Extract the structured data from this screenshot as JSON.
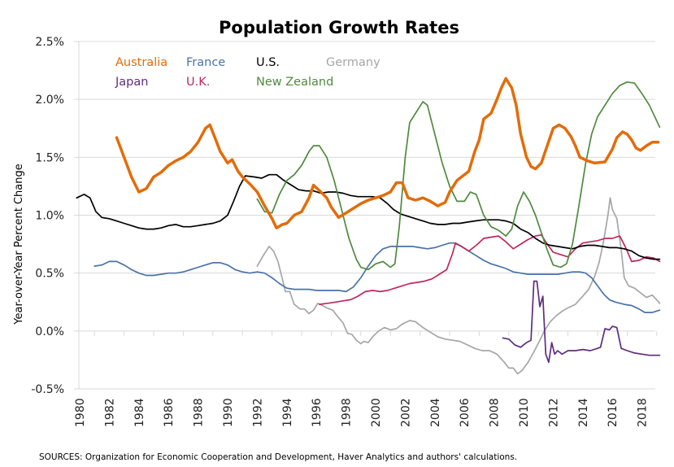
{
  "chart_data": {
    "type": "line",
    "title": "Population Growth Rates",
    "xlabel": "",
    "ylabel": "Year-over-Year  Percent Change",
    "source": "SOURCES: Organization for Economic Cooperation and Development,  Haver Analytics and authors' calculations.",
    "xlim": [
      1980,
      2019.2
    ],
    "ylim": [
      -0.5,
      2.5
    ],
    "yticks": [
      -0.5,
      0.0,
      0.5,
      1.0,
      1.5,
      2.0,
      2.5
    ],
    "ytick_labels": [
      "-0.5%",
      "0.0%",
      "0.5%",
      "1.0%",
      "1.5%",
      "2.0%",
      "2.5%"
    ],
    "xticks": [
      1980,
      1982,
      1984,
      1986,
      1988,
      1990,
      1992,
      1994,
      1996,
      1998,
      2000,
      2002,
      2004,
      2006,
      2008,
      2010,
      2012,
      2014,
      2016,
      2018
    ],
    "xtick_labels": [
      "1980",
      "1982",
      "1984",
      "1986",
      "1988",
      "1990",
      "1992",
      "1994",
      "1996",
      "1998",
      "2000",
      "2002",
      "2004",
      "2006",
      "2008",
      "2010",
      "2012",
      "2014",
      "2016",
      "2018"
    ],
    "grid": "horizontal",
    "legend_position": "top-left",
    "legend": [
      {
        "name": "Australia",
        "color": "#E36C09"
      },
      {
        "name": "France",
        "color": "#4A72A8"
      },
      {
        "name": "U.S.",
        "color": "#000000"
      },
      {
        "name": "Germany",
        "color": "#A6A6A6"
      },
      {
        "name": "Japan",
        "color": "#5F2C7E"
      },
      {
        "name": "U.K.",
        "color": "#C0275B"
      },
      {
        "name": "New Zealand",
        "color": "#4E8A3E"
      }
    ],
    "series": [
      {
        "name": "Germany",
        "color": "#A6A6A6",
        "bold": false,
        "x": [
          1992,
          1992.4,
          1992.8,
          1993.1,
          1993.4,
          1993.7,
          1993.9,
          1994.2,
          1994.5,
          1994.9,
          1995.2,
          1995.5,
          1995.8,
          1996.1,
          1996.4,
          1996.7,
          1997.1,
          1997.4,
          1997.8,
          1998.1,
          1998.4,
          1998.7,
          1999,
          1999.2,
          1999.5,
          1999.8,
          2000.2,
          2000.6,
          2001,
          2001.4,
          2001.8,
          2002.3,
          2002.7,
          2003.2,
          2003.7,
          2004.2,
          2004.7,
          2005.2,
          2005.7,
          2006.2,
          2006.7,
          2007.2,
          2007.7,
          2008.2,
          2008.7,
          2009.0,
          2009.3,
          2009.6,
          2009.9,
          2010.3,
          2010.7,
          2011.1,
          2011.4,
          2011.8,
          2012.2,
          2012.6,
          2013,
          2013.5,
          2014,
          2014.4,
          2014.8,
          2015.1,
          2015.4,
          2015.7,
          2015.85,
          2016,
          2016.3,
          2016.6,
          2016.8,
          2017.1,
          2017.5,
          2017.9,
          2018.3,
          2018.7,
          2019.2
        ],
        "y": [
          0.56,
          0.65,
          0.73,
          0.69,
          0.6,
          0.45,
          0.34,
          0.34,
          0.23,
          0.19,
          0.19,
          0.15,
          0.18,
          0.24,
          0.22,
          0.2,
          0.18,
          0.13,
          0.07,
          -0.02,
          -0.03,
          -0.08,
          -0.11,
          -0.09,
          -0.1,
          -0.05,
          0.0,
          0.03,
          0.01,
          0.02,
          0.06,
          0.09,
          0.08,
          0.03,
          -0.01,
          -0.05,
          -0.07,
          -0.08,
          -0.09,
          -0.12,
          -0.15,
          -0.17,
          -0.17,
          -0.2,
          -0.27,
          -0.32,
          -0.32,
          -0.37,
          -0.34,
          -0.27,
          -0.18,
          -0.08,
          0.0,
          0.08,
          0.13,
          0.17,
          0.2,
          0.23,
          0.3,
          0.36,
          0.47,
          0.59,
          0.77,
          1.0,
          1.15,
          1.05,
          0.97,
          0.7,
          0.46,
          0.39,
          0.37,
          0.33,
          0.29,
          0.31,
          0.24
        ]
      },
      {
        "name": "Japan",
        "color": "#5F2C7E",
        "bold": false,
        "x": [
          2008.6,
          2009,
          2009.4,
          2009.8,
          2010.2,
          2010.5,
          2010.7,
          2010.9,
          2011.1,
          2011.3,
          2011.5,
          2011.7,
          2011.9,
          2012.1,
          2012.3,
          2012.6,
          2013,
          2013.5,
          2014,
          2014.5,
          2015,
          2015.2,
          2015.5,
          2015.8,
          2016,
          2016.3,
          2016.6,
          2017,
          2017.5,
          2018,
          2018.5,
          2019.2
        ],
        "y": [
          -0.06,
          -0.07,
          -0.12,
          -0.14,
          -0.1,
          -0.08,
          0.43,
          0.43,
          0.21,
          0.3,
          -0.2,
          -0.27,
          -0.1,
          -0.2,
          -0.17,
          -0.2,
          -0.17,
          -0.17,
          -0.16,
          -0.17,
          -0.15,
          -0.14,
          0.02,
          0.01,
          0.04,
          0.03,
          -0.15,
          -0.17,
          -0.19,
          -0.2,
          -0.21,
          -0.21
        ]
      },
      {
        "name": "France",
        "color": "#4A72A8",
        "bold": false,
        "x": [
          1981,
          1981.5,
          1982,
          1982.5,
          1983,
          1983.5,
          1984,
          1984.5,
          1985,
          1985.5,
          1986,
          1986.5,
          1987,
          1987.5,
          1988,
          1988.5,
          1989,
          1989.5,
          1990,
          1990.5,
          1991,
          1991.5,
          1992,
          1992.5,
          1993,
          1993.5,
          1994,
          1994.5,
          1995,
          1995.5,
          1996,
          1996.5,
          1997,
          1997.5,
          1998,
          1998.5,
          1999,
          1999.5,
          2000,
          2000.5,
          2001,
          2001.5,
          2002,
          2002.5,
          2003,
          2003.5,
          2004,
          2004.5,
          2005,
          2005.3,
          2005.8,
          2006.3,
          2006.8,
          2007.3,
          2007.8,
          2008.3,
          2008.8,
          2009.3,
          2009.8,
          2010.3,
          2010.8,
          2011.3,
          2011.8,
          2012.3,
          2012.8,
          2013.3,
          2013.8,
          2014.2,
          2014.6,
          2015,
          2015.4,
          2015.8,
          2016.2,
          2016.8,
          2017.3,
          2017.8,
          2018.2,
          2018.7,
          2019.2
        ],
        "y": [
          0.56,
          0.57,
          0.6,
          0.6,
          0.57,
          0.53,
          0.5,
          0.48,
          0.48,
          0.49,
          0.5,
          0.5,
          0.51,
          0.53,
          0.55,
          0.57,
          0.59,
          0.59,
          0.57,
          0.53,
          0.51,
          0.5,
          0.51,
          0.5,
          0.46,
          0.41,
          0.37,
          0.36,
          0.36,
          0.36,
          0.35,
          0.35,
          0.35,
          0.35,
          0.34,
          0.38,
          0.46,
          0.56,
          0.65,
          0.71,
          0.73,
          0.73,
          0.73,
          0.73,
          0.72,
          0.71,
          0.72,
          0.74,
          0.76,
          0.76,
          0.73,
          0.69,
          0.65,
          0.61,
          0.58,
          0.56,
          0.54,
          0.51,
          0.5,
          0.49,
          0.49,
          0.49,
          0.49,
          0.49,
          0.5,
          0.51,
          0.51,
          0.5,
          0.46,
          0.39,
          0.32,
          0.27,
          0.25,
          0.23,
          0.22,
          0.19,
          0.16,
          0.16,
          0.18
        ]
      },
      {
        "name": "U.K.",
        "color": "#C0275B",
        "bold": false,
        "x": [
          1996.2,
          1996.8,
          1997.3,
          1997.8,
          1998.3,
          1998.8,
          1999.3,
          1999.8,
          2000.3,
          2000.8,
          2001.3,
          2001.8,
          2002.3,
          2002.8,
          2003.3,
          2003.8,
          2004.3,
          2004.8,
          2005.2,
          2005.4,
          2005.8,
          2006.3,
          2006.8,
          2007.3,
          2007.8,
          2008.3,
          2008.8,
          2009.3,
          2009.8,
          2010.3,
          2010.8,
          2011.2,
          2011.6,
          2012.0,
          2012.5,
          2013.0,
          2013.5,
          2014.0,
          2014.5,
          2015.0,
          2015.5,
          2016.0,
          2016.5,
          2016.9,
          2017.3,
          2017.8,
          2018.3,
          2018.8,
          2019.2
        ],
        "y": [
          0.23,
          0.24,
          0.25,
          0.26,
          0.27,
          0.3,
          0.34,
          0.35,
          0.34,
          0.35,
          0.37,
          0.39,
          0.41,
          0.42,
          0.43,
          0.45,
          0.49,
          0.53,
          0.67,
          0.76,
          0.73,
          0.69,
          0.74,
          0.8,
          0.81,
          0.82,
          0.77,
          0.71,
          0.75,
          0.79,
          0.82,
          0.83,
          0.75,
          0.68,
          0.66,
          0.64,
          0.71,
          0.76,
          0.77,
          0.78,
          0.8,
          0.8,
          0.82,
          0.72,
          0.6,
          0.61,
          0.64,
          0.63,
          0.6
        ]
      },
      {
        "name": "U.S.",
        "color": "#000000",
        "bold": false,
        "x": [
          1979.8,
          1980.3,
          1980.7,
          1981.1,
          1981.5,
          1982,
          1982.5,
          1983,
          1983.5,
          1984,
          1984.5,
          1985,
          1985.5,
          1986,
          1986.5,
          1987,
          1987.5,
          1988,
          1988.5,
          1989,
          1989.5,
          1990,
          1990.4,
          1990.8,
          1991.2,
          1991.8,
          1992.3,
          1992.8,
          1993.3,
          1993.8,
          1994.3,
          1994.8,
          1995.3,
          1995.8,
          1996.3,
          1996.8,
          1997.3,
          1997.8,
          1998.3,
          1998.8,
          1999.3,
          1999.8,
          2000.3,
          2000.8,
          2001.2,
          2001.7,
          2002.2,
          2002.7,
          2003.2,
          2003.7,
          2004.2,
          2004.7,
          2005.2,
          2005.7,
          2006.2,
          2006.7,
          2007.3,
          2007.8,
          2008.3,
          2008.8,
          2009.3,
          2009.8,
          2010.3,
          2010.8,
          2011.3,
          2011.8,
          2012.3,
          2012.8,
          2013.3,
          2013.8,
          2014.3,
          2014.8,
          2015.3,
          2015.8,
          2016.3,
          2016.8,
          2017.3,
          2017.8,
          2018.3,
          2018.8,
          2019.2
        ],
        "y": [
          1.15,
          1.18,
          1.15,
          1.03,
          0.98,
          0.97,
          0.95,
          0.93,
          0.91,
          0.89,
          0.88,
          0.88,
          0.89,
          0.91,
          0.92,
          0.9,
          0.9,
          0.91,
          0.92,
          0.93,
          0.95,
          1.0,
          1.12,
          1.25,
          1.34,
          1.33,
          1.32,
          1.35,
          1.35,
          1.3,
          1.26,
          1.22,
          1.21,
          1.21,
          1.19,
          1.2,
          1.2,
          1.19,
          1.17,
          1.16,
          1.16,
          1.16,
          1.15,
          1.1,
          1.05,
          1.01,
          0.99,
          0.97,
          0.95,
          0.93,
          0.92,
          0.92,
          0.93,
          0.93,
          0.94,
          0.95,
          0.96,
          0.96,
          0.96,
          0.95,
          0.93,
          0.88,
          0.85,
          0.8,
          0.76,
          0.74,
          0.73,
          0.72,
          0.71,
          0.73,
          0.74,
          0.74,
          0.73,
          0.72,
          0.72,
          0.71,
          0.69,
          0.65,
          0.63,
          0.62,
          0.62
        ]
      },
      {
        "name": "New Zealand",
        "color": "#4E8A3E",
        "bold": false,
        "x": [
          1992,
          1992.5,
          1993,
          1993.5,
          1994,
          1994.5,
          1995,
          1995.5,
          1995.8,
          1996.2,
          1996.7,
          1997.2,
          1997.7,
          1998.2,
          1998.7,
          1999,
          1999.5,
          2000,
          2000.5,
          2001,
          2001.3,
          2001.6,
          2002,
          2002.3,
          2002.7,
          2003.2,
          2003.5,
          2004,
          2004.5,
          2005,
          2005.5,
          2006,
          2006.4,
          2006.8,
          2007.3,
          2007.8,
          2008.3,
          2008.8,
          2009.2,
          2009.6,
          2010,
          2010.4,
          2010.8,
          2011.2,
          2011.6,
          2012,
          2012.5,
          2012.9,
          2013.3,
          2013.7,
          2014.2,
          2014.6,
          2015,
          2015.5,
          2016,
          2016.5,
          2017,
          2017.5,
          2018,
          2018.5,
          2019.2
        ],
        "y": [
          1.14,
          1.03,
          1.02,
          1.18,
          1.3,
          1.35,
          1.43,
          1.55,
          1.6,
          1.6,
          1.5,
          1.3,
          1.05,
          0.8,
          0.62,
          0.55,
          0.53,
          0.58,
          0.6,
          0.55,
          0.58,
          0.9,
          1.5,
          1.8,
          1.88,
          1.98,
          1.95,
          1.7,
          1.45,
          1.25,
          1.12,
          1.12,
          1.2,
          1.18,
          1.0,
          0.9,
          0.87,
          0.82,
          0.88,
          1.08,
          1.2,
          1.12,
          1.0,
          0.85,
          0.7,
          0.57,
          0.55,
          0.58,
          0.75,
          1.05,
          1.45,
          1.7,
          1.85,
          1.95,
          2.05,
          2.12,
          2.15,
          2.14,
          2.05,
          1.95,
          1.76
        ]
      },
      {
        "name": "Australia",
        "color": "#E36C09",
        "bold": true,
        "x": [
          1982.5,
          1983,
          1983.5,
          1984,
          1984.5,
          1985,
          1985.5,
          1986,
          1986.5,
          1987,
          1987.5,
          1988,
          1988.5,
          1988.8,
          1989.2,
          1989.5,
          1990,
          1990.3,
          1990.7,
          1991,
          1991.5,
          1992,
          1992.5,
          1993,
          1993.3,
          1993.7,
          1994,
          1994.5,
          1995,
          1995.5,
          1995.8,
          1996.3,
          1996.7,
          1997,
          1997.5,
          1998,
          1998.5,
          1999,
          1999.5,
          2000,
          2000.5,
          2001,
          2001.4,
          2001.8,
          2002.2,
          2002.7,
          2003.2,
          2003.7,
          2004.2,
          2004.7,
          2005,
          2005.5,
          2006,
          2006.3,
          2006.7,
          2007,
          2007.3,
          2007.8,
          2008.2,
          2008.5,
          2008.8,
          2009.2,
          2009.5,
          2009.8,
          2010.2,
          2010.5,
          2010.8,
          2011.2,
          2011.6,
          2012,
          2012.4,
          2012.8,
          2013.2,
          2013.5,
          2013.8,
          2014.3,
          2014.8,
          2015.5,
          2016,
          2016.3,
          2016.7,
          2017,
          2017.3,
          2017.6,
          2017.9,
          2018.3,
          2018.7,
          2019.1
        ],
        "y": [
          1.67,
          1.5,
          1.33,
          1.2,
          1.23,
          1.33,
          1.37,
          1.43,
          1.47,
          1.5,
          1.55,
          1.63,
          1.75,
          1.78,
          1.65,
          1.55,
          1.45,
          1.48,
          1.38,
          1.33,
          1.27,
          1.2,
          1.08,
          0.97,
          0.89,
          0.92,
          0.93,
          1.0,
          1.03,
          1.15,
          1.26,
          1.2,
          1.15,
          1.07,
          0.98,
          1.02,
          1.06,
          1.1,
          1.13,
          1.15,
          1.17,
          1.2,
          1.28,
          1.28,
          1.15,
          1.13,
          1.15,
          1.12,
          1.08,
          1.11,
          1.2,
          1.3,
          1.35,
          1.38,
          1.55,
          1.65,
          1.83,
          1.88,
          2.0,
          2.1,
          2.18,
          2.1,
          1.95,
          1.7,
          1.5,
          1.42,
          1.4,
          1.45,
          1.6,
          1.75,
          1.78,
          1.75,
          1.68,
          1.6,
          1.5,
          1.47,
          1.45,
          1.46,
          1.57,
          1.67,
          1.72,
          1.7,
          1.65,
          1.58,
          1.56,
          1.6,
          1.63,
          1.63
        ]
      }
    ]
  }
}
